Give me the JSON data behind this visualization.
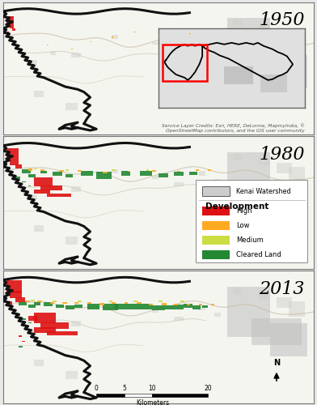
{
  "years": [
    "1950",
    "1980",
    "2013"
  ],
  "fig_bg": "#e8e8e8",
  "map_bg": "#f5f5f0",
  "border_color": "#444444",
  "legend": {
    "watershed_label": "Kenai Watershed",
    "watershed_color": "#c8c8c8",
    "dev_title": "Development",
    "items": [
      {
        "label": "High",
        "color": "#dd1111"
      },
      {
        "label": "Low",
        "color": "#ffaa22"
      },
      {
        "label": "Medium",
        "color": "#ccdd44"
      },
      {
        "label": "Cleared Land",
        "color": "#228833"
      }
    ]
  },
  "scale_bar": {
    "ticks": [
      "0",
      "5",
      "10",
      "20"
    ],
    "label": "Kilometers"
  },
  "credit_text": "Service Layer Credits: Esri, HERE, DeLorme, Mapmylndia, ©\nOpenStreetMap contributors, and the GIS user community",
  "year_fontsize": 16,
  "river_color": "#c8bfa8",
  "boundary_color": "#111111",
  "gray_water": "#b8b8b8",
  "inset_bg": "#e0e0e0"
}
